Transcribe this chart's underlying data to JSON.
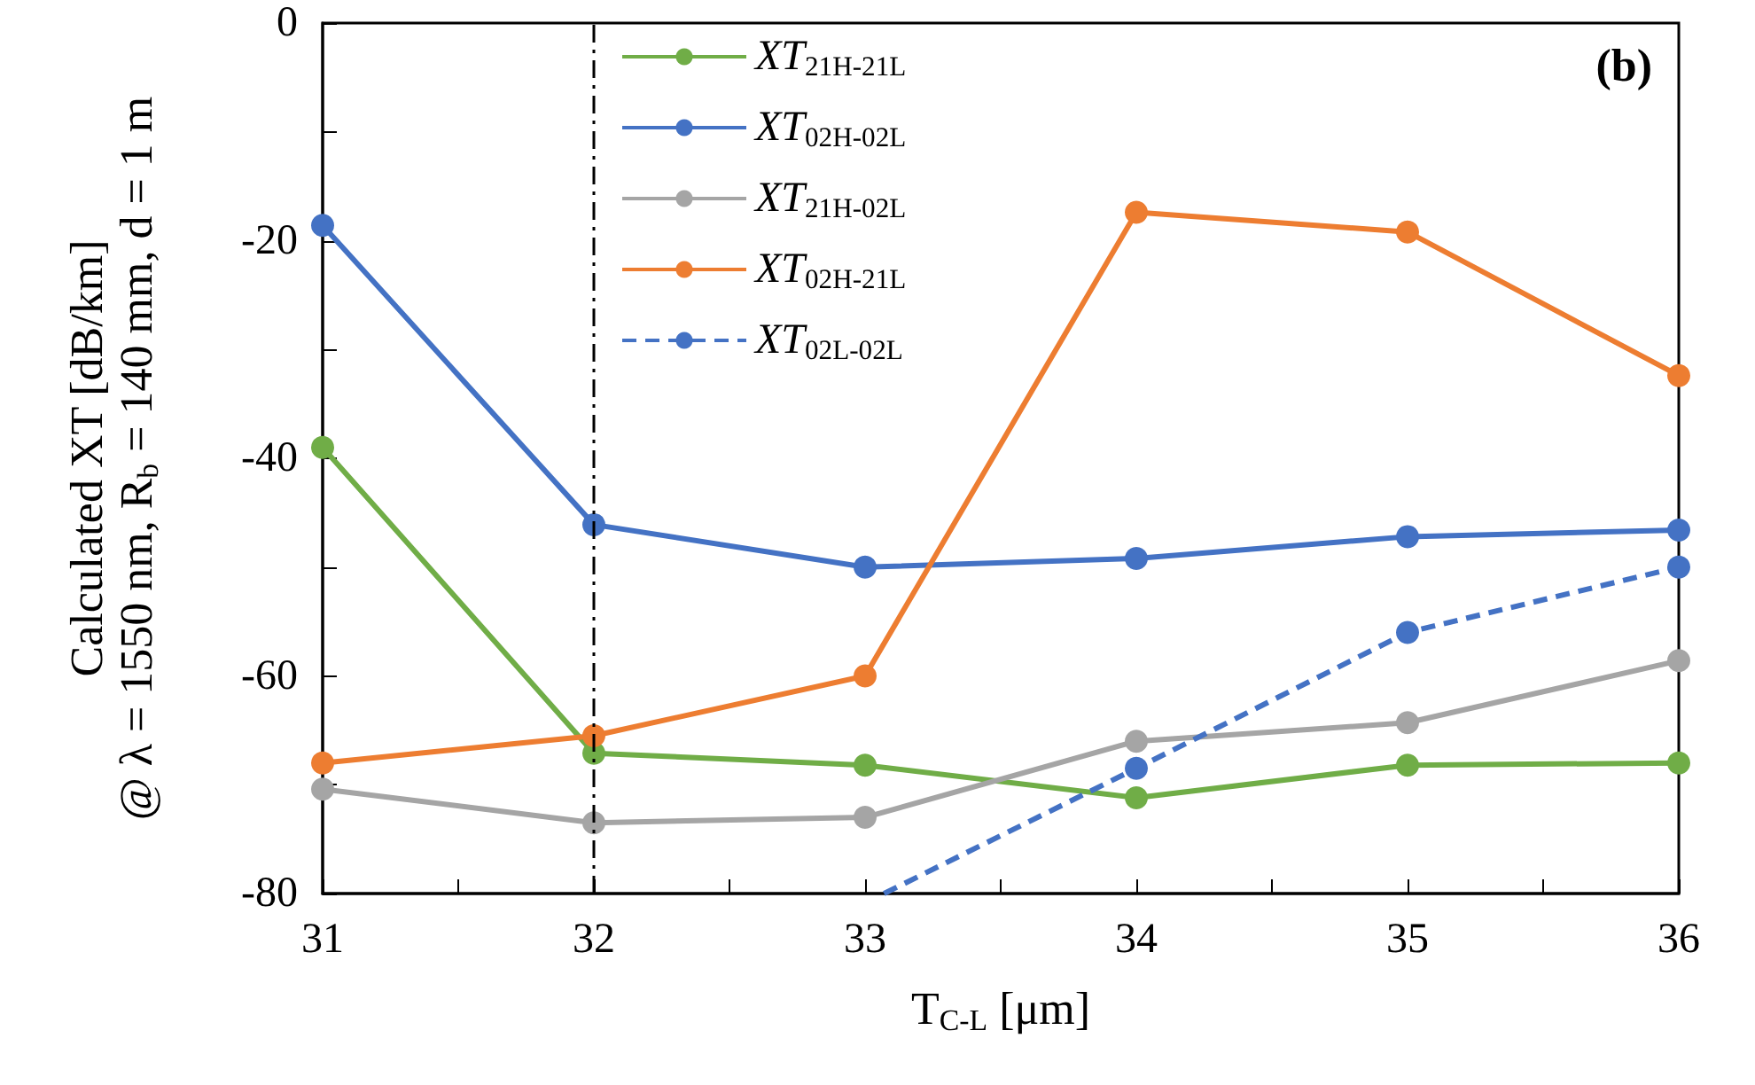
{
  "chart_data": {
    "type": "line",
    "xlabel": "T$_{C-L}$ [μm]",
    "ylabel": "Calculated XT [dB/km]\n@ λ = 1550 nm, R$_{b}$ = 140 mm, d = 1 m",
    "x": [
      31,
      32,
      33,
      34,
      35,
      36
    ],
    "xlim": [
      31,
      36
    ],
    "xticks": [
      31,
      32,
      33,
      34,
      35,
      36
    ],
    "ylim": [
      -80,
      0
    ],
    "yticks": [
      -80,
      -60,
      -40,
      -20,
      0
    ],
    "grid": false,
    "legend": "top left",
    "marker": "circle",
    "series": [
      {
        "name": "XT$_{21H-21L}$",
        "color": "#70ad47",
        "values": [
          -39,
          -67.1,
          -68.2,
          -71.2,
          -68.2,
          -68
        ]
      },
      {
        "name": "XT$_{02H-02L}$",
        "color": "#4472c4",
        "values": [
          -18.6,
          -46.1,
          -50,
          -49.2,
          -47.2,
          -46.6
        ]
      },
      {
        "name": "XT$_{21H-02L}$",
        "color": "#a5a5a5",
        "values": [
          -70.4,
          -73.5,
          -73,
          -66,
          -64.3,
          -58.6
        ]
      },
      {
        "name": "XT$_{02H-21L}$",
        "color": "#ed7d31",
        "values": [
          -68,
          -65.5,
          -60,
          -17.4,
          -19.2,
          -32.4
        ]
      },
      {
        "name": "XT$_{02L-02L}$",
        "color": "#4472c4",
        "line_style": "dashed",
        "x": [
          33.07,
          34,
          35,
          36
        ],
        "values": [
          -80,
          -68.5,
          -56,
          -50
        ]
      }
    ],
    "ref_lines": [
      {
        "axis": "x",
        "value": 32,
        "color": "#000000",
        "line_style": "dashdot"
      }
    ],
    "annotations": [
      "(b)"
    ]
  }
}
